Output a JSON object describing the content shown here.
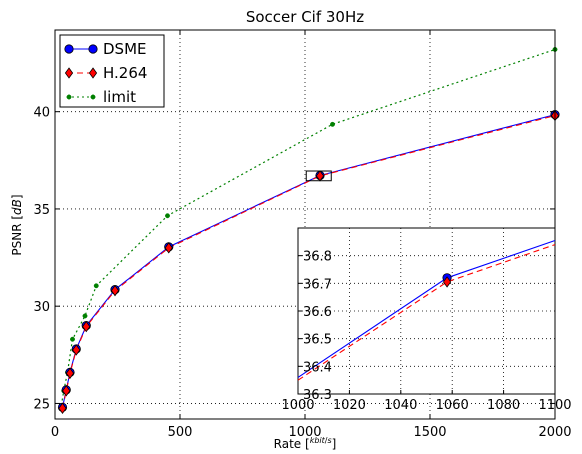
{
  "chart_data": {
    "type": "line",
    "title": "Soccer Cif 30Hz",
    "xlabel_prefix": "Rate [",
    "xlabel_frac_num": "kbit",
    "xlabel_frac_den": "s",
    "xlabel_suffix": "]",
    "ylabel_prefix": "PSNR [",
    "ylabel_unit": "dB",
    "ylabel_suffix": "]",
    "xlim": [
      0,
      2000
    ],
    "ylim": [
      24.2,
      44.2
    ],
    "xticks": [
      0,
      500,
      1000,
      1500,
      2000
    ],
    "yticks": [
      25,
      30,
      35,
      40
    ],
    "grid": true,
    "legend_position": "top-left",
    "series": [
      {
        "name": "DSME",
        "color": "#0000ff",
        "marker": "circle",
        "line": "solid",
        "x": [
          30,
          45,
          60,
          85,
          125,
          240,
          455,
          1060,
          2000
        ],
        "y": [
          24.8,
          25.7,
          26.6,
          27.8,
          29.0,
          30.85,
          33.05,
          36.72,
          39.85
        ]
      },
      {
        "name": "H.264",
        "color": "#ff0000",
        "marker": "diamond",
        "line": "dashed",
        "x": [
          30,
          45,
          60,
          85,
          125,
          240,
          455,
          1060,
          2000
        ],
        "y": [
          24.75,
          25.65,
          26.55,
          27.75,
          28.95,
          30.8,
          33.0,
          36.7,
          39.8
        ]
      },
      {
        "name": "limit",
        "color": "#008000",
        "marker": "dot",
        "line": "dotted",
        "x": [
          25,
          35,
          50,
          70,
          120,
          165,
          450,
          1110,
          2000
        ],
        "y": [
          24.9,
          25.65,
          26.6,
          28.3,
          29.5,
          31.05,
          34.65,
          39.35,
          43.2
        ]
      }
    ],
    "inset": {
      "xlim": [
        1000,
        1100
      ],
      "ylim": [
        36.3,
        36.9
      ],
      "xticks": [
        1000,
        1020,
        1040,
        1060,
        1080,
        1100
      ],
      "yticks": [
        36.3,
        36.4,
        36.5,
        36.6,
        36.7,
        36.8
      ],
      "series": [
        {
          "name": "DSME",
          "x": [
            1000,
            1058,
            1100
          ],
          "y": [
            36.36,
            36.72,
            36.855
          ]
        },
        {
          "name": "H.264",
          "x": [
            1000,
            1058,
            1100
          ],
          "y": [
            36.35,
            36.705,
            36.84
          ]
        }
      ],
      "zoom_box": {
        "x": [
          1005,
          1105
        ],
        "y": [
          36.45,
          36.95
        ]
      }
    }
  }
}
